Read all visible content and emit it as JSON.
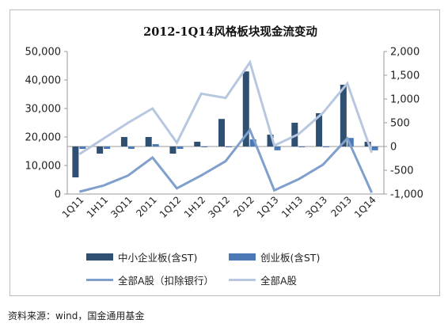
{
  "chart_data": {
    "type": "bar+line",
    "title": "2012-1Q14风格板块现金流变动",
    "categories": [
      "1Q11",
      "1H11",
      "3Q11",
      "2011",
      "1Q12",
      "1H12",
      "3Q12",
      "2012",
      "1Q13",
      "1H13",
      "3Q13",
      "2013",
      "1Q14"
    ],
    "left_axis": {
      "min": 0,
      "max": 50000,
      "step": 10000,
      "tick_labels": [
        "0",
        "10,000",
        "20,000",
        "30,000",
        "40,000",
        "50,000"
      ]
    },
    "right_axis": {
      "min": -1000,
      "max": 2000,
      "step": 500,
      "tick_labels": [
        "-1,000",
        "-500",
        "0",
        "500",
        "1,000",
        "1,500",
        "2,000"
      ]
    },
    "series": [
      {
        "name": "中小企业板(含ST)",
        "kind": "bar",
        "axis": "right",
        "color": "#2f4f73",
        "values": [
          -650,
          -150,
          200,
          200,
          -150,
          100,
          580,
          1580,
          250,
          500,
          700,
          1300,
          100
        ]
      },
      {
        "name": "创业板(含ST)",
        "kind": "bar",
        "axis": "right",
        "color": "#4a79b5",
        "values": [
          -50,
          -50,
          -50,
          50,
          -50,
          0,
          0,
          150,
          -80,
          0,
          0,
          180,
          -80
        ]
      },
      {
        "name": "全部A股（扣除银行）",
        "kind": "line",
        "axis": "left",
        "color": "#7f9fcd",
        "values": [
          800,
          3000,
          6500,
          12800,
          2000,
          6500,
          11500,
          22500,
          1300,
          5200,
          10300,
          19500,
          500
        ]
      },
      {
        "name": "全部A股",
        "kind": "line",
        "axis": "left",
        "color": "#b7c7e0",
        "values": [
          14000,
          19500,
          25000,
          30000,
          18000,
          35200,
          33700,
          46200,
          17000,
          21000,
          28500,
          38800,
          14500
        ]
      }
    ],
    "grid": false
  },
  "source_note": "资料来源：wind，国金通用基金"
}
